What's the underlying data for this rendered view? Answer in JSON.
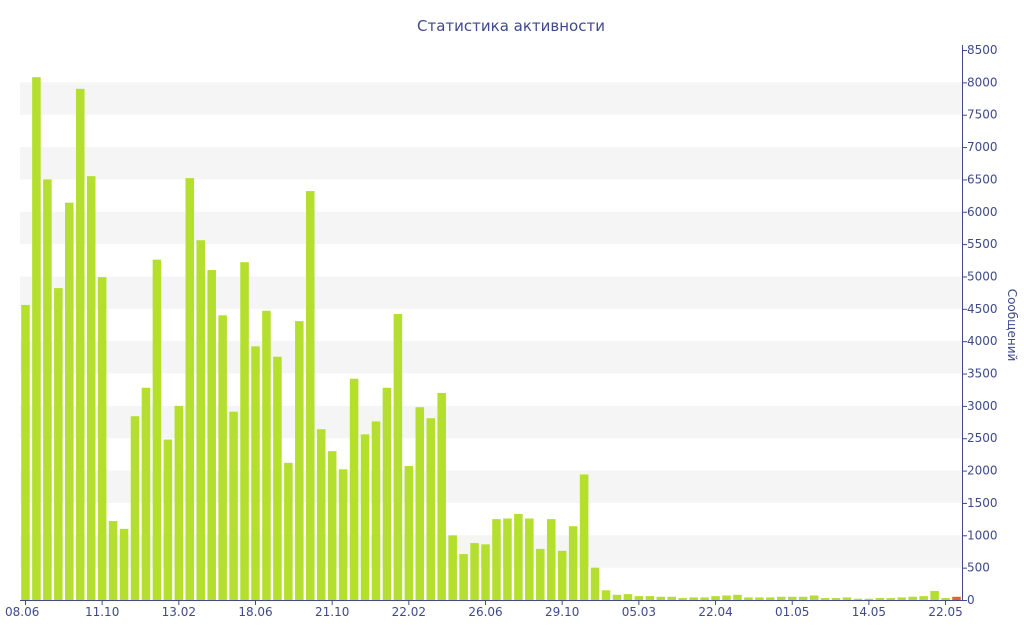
{
  "chart_data": {
    "type": "bar",
    "title": "Статистика активности",
    "xlabel": "",
    "ylabel": "Сообщений",
    "ylim": [
      0,
      8500
    ],
    "y_ticks": [
      0,
      500,
      1000,
      1500,
      2000,
      2500,
      3000,
      3500,
      4000,
      4500,
      5000,
      5500,
      6000,
      6500,
      7000,
      7500,
      8000,
      8500
    ],
    "y_axis_position": "right",
    "x_tick_labels": [
      {
        "index": 0,
        "label": "08.06"
      },
      {
        "index": 7,
        "label": "11.10"
      },
      {
        "index": 14,
        "label": "13.02"
      },
      {
        "index": 21,
        "label": "18.06"
      },
      {
        "index": 28,
        "label": "21.10"
      },
      {
        "index": 35,
        "label": "22.02"
      },
      {
        "index": 42,
        "label": "26.06"
      },
      {
        "index": 49,
        "label": "29.10"
      },
      {
        "index": 56,
        "label": "05.03"
      },
      {
        "index": 63,
        "label": "22.04"
      },
      {
        "index": 70,
        "label": "01.05"
      },
      {
        "index": 77,
        "label": "14.05"
      },
      {
        "index": 84,
        "label": "22.05"
      }
    ],
    "grid": "horizontal-bands",
    "colors": {
      "bar": "#b5df2e",
      "last_bar": "#e8602c",
      "band": "#f5f5f5",
      "text": "#3e4a8c",
      "axis": "#3e4a8c"
    },
    "values": [
      4560,
      8080,
      6500,
      4820,
      6140,
      7900,
      6550,
      4990,
      1220,
      1100,
      2840,
      3280,
      5260,
      2480,
      3000,
      6520,
      5560,
      5100,
      4400,
      2910,
      5220,
      3920,
      4470,
      3760,
      2120,
      4310,
      6320,
      2640,
      2300,
      2020,
      3420,
      2560,
      2760,
      3280,
      4420,
      2070,
      2980,
      2810,
      3200,
      1000,
      710,
      880,
      860,
      1250,
      1260,
      1330,
      1260,
      790,
      1250,
      760,
      1140,
      1940,
      500,
      150,
      80,
      90,
      60,
      60,
      50,
      50,
      30,
      40,
      40,
      60,
      70,
      80,
      40,
      40,
      40,
      50,
      50,
      50,
      70,
      30,
      30,
      40,
      20,
      20,
      30,
      30,
      40,
      50,
      60,
      140,
      30,
      50
    ]
  }
}
